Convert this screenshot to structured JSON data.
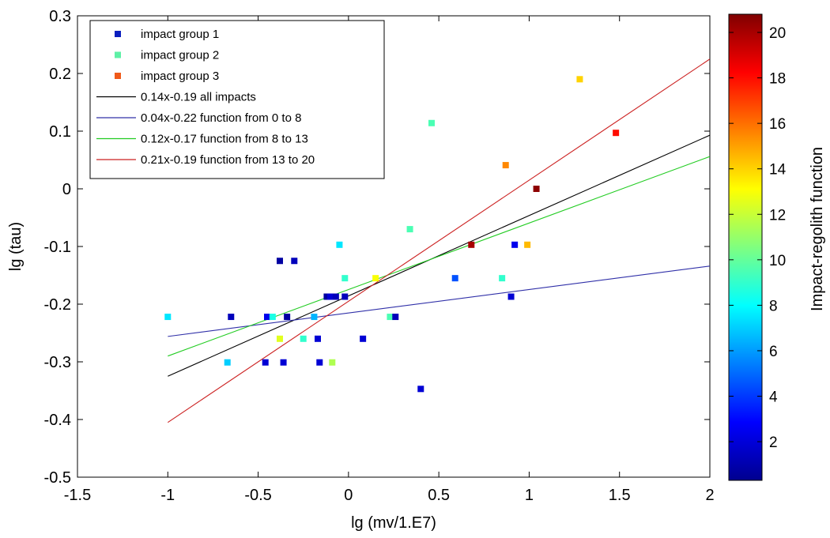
{
  "chart_data": {
    "type": "scatter",
    "xlabel": "lg (mv/1.E7)",
    "ylabel": "lg (tau)",
    "xlim": [
      -1.5,
      2
    ],
    "ylim": [
      -0.5,
      0.3
    ],
    "xticks": [
      -1.5,
      -1,
      -0.5,
      0,
      0.5,
      1,
      1.5,
      2
    ],
    "xtick_labels": [
      "-1.5",
      "-1",
      "-0.5",
      "0",
      "0.5",
      "1",
      "1.5",
      "2"
    ],
    "yticks": [
      -0.5,
      -0.4,
      -0.3,
      -0.2,
      -0.1,
      0,
      0.1,
      0.2,
      0.3
    ],
    "ytick_labels": [
      "-0.5",
      "-0.4",
      "-0.3",
      "-0.2",
      "-0.1",
      "0",
      "0.1",
      "0.2",
      "0.3"
    ],
    "grid": false,
    "legend_position": "top-left",
    "legend": [
      {
        "label": "impact group 1",
        "kind": "marker",
        "color": "#0b1fbf"
      },
      {
        "label": "impact group 2",
        "kind": "marker",
        "color": "#5ef0a6"
      },
      {
        "label": " impact group 3",
        "kind": "marker",
        "color": "#f05a1a"
      },
      {
        "label": "0.14x-0.19 all impacts",
        "kind": "line",
        "color": "#000000"
      },
      {
        "label": "0.04x-0.22 function from 0 to 8",
        "kind": "line",
        "color": "#3030a8"
      },
      {
        "label": "0.12x-0.17 function from 8 to 13",
        "kind": "line",
        "color": "#22cc22"
      },
      {
        "label": "0.21x-0.19 function from 13 to 20",
        "kind": "line",
        "color": "#cc2222"
      }
    ],
    "lines": [
      {
        "color": "#000000",
        "x": [
          -1,
          2
        ],
        "y": [
          -0.325,
          0.093
        ]
      },
      {
        "color": "#3030a8",
        "x": [
          -1,
          2
        ],
        "y": [
          -0.256,
          -0.134
        ]
      },
      {
        "color": "#22cc22",
        "x": [
          -1,
          2
        ],
        "y": [
          -0.29,
          0.056
        ]
      },
      {
        "color": "#cc2222",
        "x": [
          -1,
          2
        ],
        "y": [
          -0.405,
          0.225
        ]
      }
    ],
    "points": [
      {
        "x": -1.0,
        "y": -0.222,
        "c": 7.5
      },
      {
        "x": -0.65,
        "y": -0.222,
        "c": 1.5
      },
      {
        "x": -0.67,
        "y": -0.301,
        "c": 7.0
      },
      {
        "x": -0.46,
        "y": -0.301,
        "c": 2.0
      },
      {
        "x": -0.45,
        "y": -0.222,
        "c": 2.5
      },
      {
        "x": -0.42,
        "y": -0.222,
        "c": 8.5
      },
      {
        "x": -0.38,
        "y": -0.125,
        "c": 1.0
      },
      {
        "x": -0.38,
        "y": -0.26,
        "c": 12.5
      },
      {
        "x": -0.34,
        "y": -0.222,
        "c": 1.0
      },
      {
        "x": -0.36,
        "y": -0.301,
        "c": 2.0
      },
      {
        "x": -0.3,
        "y": -0.125,
        "c": 1.5
      },
      {
        "x": -0.25,
        "y": -0.26,
        "c": 9.0
      },
      {
        "x": -0.19,
        "y": -0.222,
        "c": 6.5
      },
      {
        "x": -0.17,
        "y": -0.26,
        "c": 2.0
      },
      {
        "x": -0.16,
        "y": -0.301,
        "c": 2.0
      },
      {
        "x": -0.12,
        "y": -0.187,
        "c": 1.0
      },
      {
        "x": -0.1,
        "y": -0.187,
        "c": 2.0
      },
      {
        "x": -0.07,
        "y": -0.187,
        "c": 1.5
      },
      {
        "x": -0.09,
        "y": -0.301,
        "c": 11.5
      },
      {
        "x": -0.05,
        "y": -0.097,
        "c": 7.5
      },
      {
        "x": -0.02,
        "y": -0.155,
        "c": 9.0
      },
      {
        "x": -0.02,
        "y": -0.187,
        "c": 1.5
      },
      {
        "x": 0.08,
        "y": -0.26,
        "c": 2.0
      },
      {
        "x": 0.15,
        "y": -0.155,
        "c": 13.0
      },
      {
        "x": 0.23,
        "y": -0.222,
        "c": 9.5
      },
      {
        "x": 0.26,
        "y": -0.222,
        "c": 1.5
      },
      {
        "x": 0.34,
        "y": -0.07,
        "c": 9.5
      },
      {
        "x": 0.4,
        "y": -0.347,
        "c": 2.0
      },
      {
        "x": 0.46,
        "y": 0.114,
        "c": 9.5
      },
      {
        "x": 0.59,
        "y": -0.155,
        "c": 4.5
      },
      {
        "x": 0.68,
        "y": -0.097,
        "c": 20.0
      },
      {
        "x": 0.85,
        "y": -0.155,
        "c": 9.0
      },
      {
        "x": 0.87,
        "y": 0.041,
        "c": 15.5
      },
      {
        "x": 0.9,
        "y": -0.187,
        "c": 2.0
      },
      {
        "x": 0.92,
        "y": -0.097,
        "c": 2.5
      },
      {
        "x": 0.99,
        "y": -0.097,
        "c": 14.5
      },
      {
        "x": 1.04,
        "y": 0.0,
        "c": 20.5
      },
      {
        "x": 1.28,
        "y": 0.19,
        "c": 14.0
      },
      {
        "x": 1.48,
        "y": 0.097,
        "c": 18.0
      }
    ],
    "colorbar": {
      "label": "Impact-regolith function",
      "range": [
        0.3,
        20.8
      ],
      "ticks": [
        2,
        4,
        6,
        8,
        10,
        12,
        14,
        16,
        18,
        20
      ],
      "tick_labels": [
        "2",
        "4",
        "6",
        "8",
        "10",
        "12",
        "14",
        "16",
        "18",
        "20"
      ],
      "colormap": "jet"
    }
  }
}
